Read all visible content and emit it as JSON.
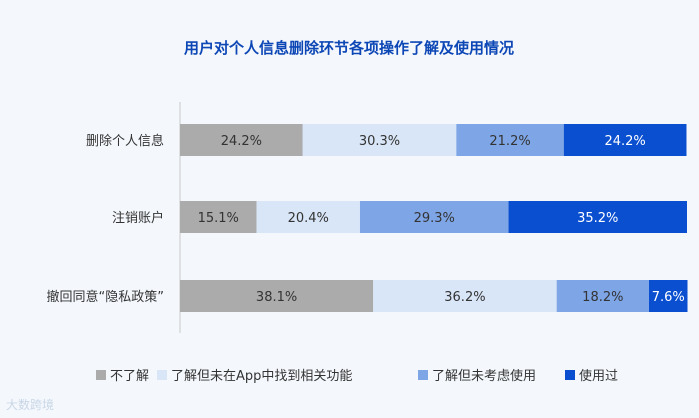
{
  "chart_data": {
    "type": "bar",
    "orientation": "horizontal",
    "stacked": true,
    "title": "用户对个人信息删除环节各项操作了解及使用情况",
    "categories": [
      "删除个人信息",
      "注销账户",
      "撤回同意“隐私政策”"
    ],
    "series": [
      {
        "name": "不了解",
        "color": "#ababab",
        "values": [
          24.2,
          15.1,
          38.1
        ],
        "labels": [
          "24.2%",
          "15.1%",
          "38.1%"
        ]
      },
      {
        "name": "了解但未在App中找到相关功能",
        "color": "#d9e6f7",
        "values": [
          30.3,
          20.4,
          36.2
        ],
        "labels": [
          "30.3%",
          "20.4%",
          "36.2%"
        ]
      },
      {
        "name": "了解但未考虑使用",
        "color": "#7ea6e6",
        "values": [
          21.2,
          29.3,
          18.2
        ],
        "labels": [
          "21.2%",
          "29.3%",
          "18.2%"
        ]
      },
      {
        "name": "使用过",
        "color": "#0a4fd0",
        "values": [
          24.2,
          35.2,
          7.6
        ],
        "labels": [
          "24.2%",
          "35.2%",
          "7.6%"
        ]
      }
    ],
    "xlim": [
      0,
      100
    ],
    "grid": false,
    "legend_position": "bottom"
  },
  "watermark": "大数跨境"
}
